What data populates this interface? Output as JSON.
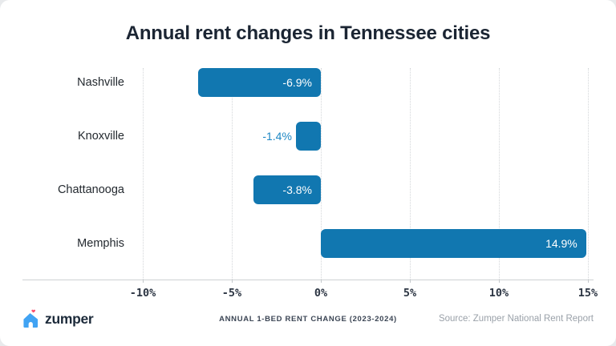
{
  "page": {
    "title": "Annual rent changes in Tennessee cities"
  },
  "chart_data": {
    "type": "bar",
    "orientation": "horizontal",
    "title": "Annual rent changes in Tennessee cities",
    "categories": [
      "Nashville",
      "Knoxville",
      "Chattanooga",
      "Memphis"
    ],
    "values": [
      -6.9,
      -1.4,
      -3.8,
      14.9
    ],
    "value_labels": [
      "-6.9%",
      "-1.4%",
      "-3.8%",
      "14.9%"
    ],
    "xlim": [
      -10,
      15
    ],
    "xtick_values": [
      -10,
      -5,
      0,
      5,
      10,
      15
    ],
    "xtick_labels": [
      "-10%",
      "-5%",
      "0%",
      "5%",
      "10%",
      "15%"
    ],
    "grid": "vertical-dotted",
    "legend": "none",
    "bar_color": "#1177b0",
    "value_label_inside_color": "#ffffff",
    "value_label_outside_color": "#1d87c4"
  },
  "footer": {
    "brand": "zumper",
    "caption": "ANNUAL 1-BED RENT CHANGE (2023-2024)",
    "source": "Source: Zumper National Rent Report"
  },
  "colors": {
    "bar": "#1177b0",
    "title_text": "#1b2533",
    "brand_house": "#41a3f3",
    "brand_heart": "#fb4d6d",
    "card_background": "#ffffff",
    "page_background": "#e8eaec"
  }
}
